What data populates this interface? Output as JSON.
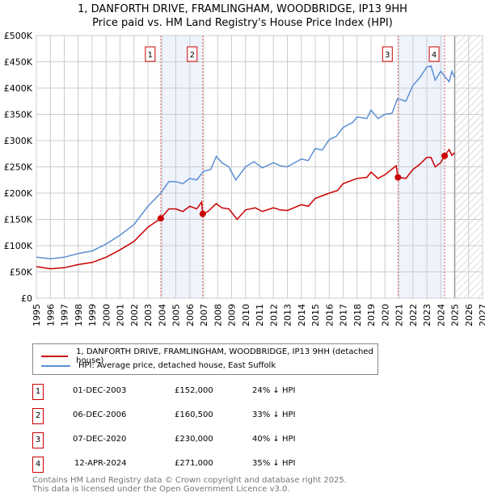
{
  "chart_data": {
    "type": "line",
    "title": "1, DANFORTH DRIVE, FRAMLINGHAM, WOODBRIDGE, IP13 9HH",
    "subtitle": "Price paid vs. HM Land Registry's House Price Index (HPI)",
    "xlim": [
      1995,
      2027
    ],
    "ylim": [
      0,
      500000
    ],
    "yticks": [
      {
        "v": 0,
        "label": "£0"
      },
      {
        "v": 50000,
        "label": "£50K"
      },
      {
        "v": 100000,
        "label": "£100K"
      },
      {
        "v": 150000,
        "label": "£150K"
      },
      {
        "v": 200000,
        "label": "£200K"
      },
      {
        "v": 250000,
        "label": "£250K"
      },
      {
        "v": 300000,
        "label": "£300K"
      },
      {
        "v": 350000,
        "label": "£350K"
      },
      {
        "v": 400000,
        "label": "£400K"
      },
      {
        "v": 450000,
        "label": "£450K"
      },
      {
        "v": 500000,
        "label": "£500K"
      }
    ],
    "xticks": [
      "1995",
      "1996",
      "1997",
      "1998",
      "1999",
      "2000",
      "2001",
      "2002",
      "2003",
      "2004",
      "2005",
      "2006",
      "2007",
      "2008",
      "2009",
      "2010",
      "2011",
      "2012",
      "2013",
      "2014",
      "2015",
      "2016",
      "2017",
      "2018",
      "2019",
      "2020",
      "2021",
      "2022",
      "2023",
      "2024",
      "2025",
      "2026",
      "2027"
    ],
    "grid": true,
    "forecast_start": 2025,
    "shaded_ranges": [
      [
        2003.92,
        2006.93
      ],
      [
        2020.93,
        2024.28
      ]
    ],
    "series": [
      {
        "name": "1, DANFORTH DRIVE, FRAMLINGHAM, WOODBRIDGE, IP13 9HH (detached house)",
        "color": "#cc0000",
        "x": [
          1995,
          1996,
          1997,
          1998,
          1999,
          2000,
          2001,
          2002,
          2003,
          2003.92,
          2004.5,
          2005,
          2005.5,
          2006,
          2006.5,
          2006.85,
          2006.93,
          2007.3,
          2007.9,
          2008.3,
          2008.8,
          2009.4,
          2010,
          2010.7,
          2011.2,
          2012,
          2012.5,
          2013,
          2014,
          2014.5,
          2015,
          2016,
          2016.6,
          2017,
          2018,
          2018.7,
          2019,
          2019.5,
          2020,
          2020.8,
          2020.93,
          2021.5,
          2022,
          2022.5,
          2023,
          2023.3,
          2023.6,
          2024,
          2024.28,
          2024.6,
          2024.8,
          2025
        ],
        "y": [
          60000,
          56000,
          58000,
          64000,
          68000,
          78000,
          92000,
          108000,
          135000,
          152000,
          170000,
          170000,
          165000,
          175000,
          170000,
          183000,
          160500,
          165000,
          180000,
          172000,
          170000,
          150000,
          168000,
          172000,
          165000,
          172000,
          168000,
          167000,
          178000,
          175000,
          190000,
          200000,
          205000,
          218000,
          228000,
          230000,
          240000,
          228000,
          235000,
          252000,
          230000,
          228000,
          245000,
          255000,
          268000,
          268000,
          250000,
          258000,
          271000,
          283000,
          272000,
          277000
        ]
      },
      {
        "name": "HPI: Average price, detached house, East Suffolk",
        "color": "#5b8fd4",
        "x": [
          1995,
          1996,
          1997,
          1998,
          1999,
          2000,
          2001,
          2002,
          2003,
          2003.92,
          2004.5,
          2005,
          2005.5,
          2006,
          2006.5,
          2007,
          2007.5,
          2007.9,
          2008.3,
          2008.8,
          2009.3,
          2010,
          2010.6,
          2011.2,
          2012,
          2012.5,
          2013,
          2014,
          2014.5,
          2015,
          2015.5,
          2016,
          2016.5,
          2017,
          2017.7,
          2018,
          2018.7,
          2019,
          2019.5,
          2020,
          2020.5,
          2020.9,
          2021.5,
          2022,
          2022.5,
          2023,
          2023.3,
          2023.6,
          2024,
          2024.3,
          2024.6,
          2024.8,
          2025
        ],
        "y": [
          78000,
          75000,
          78000,
          85000,
          90000,
          103000,
          120000,
          140000,
          175000,
          200000,
          222000,
          222000,
          218000,
          228000,
          225000,
          242000,
          245000,
          270000,
          258000,
          250000,
          225000,
          250000,
          260000,
          248000,
          258000,
          252000,
          250000,
          265000,
          262000,
          285000,
          282000,
          302000,
          308000,
          325000,
          335000,
          345000,
          342000,
          358000,
          342000,
          350000,
          352000,
          380000,
          375000,
          405000,
          420000,
          440000,
          442000,
          415000,
          432000,
          422000,
          412000,
          432000,
          420000
        ]
      }
    ],
    "sales": [
      {
        "n": "1",
        "x": 2003.92,
        "y": 152000,
        "date": "01-DEC-2003",
        "price": "£152,000",
        "hpi": "24% ↓ HPI"
      },
      {
        "n": "2",
        "x": 2006.93,
        "y": 160500,
        "date": "06-DEC-2006",
        "price": "£160,500",
        "hpi": "33% ↓ HPI"
      },
      {
        "n": "3",
        "x": 2020.93,
        "y": 230000,
        "date": "07-DEC-2020",
        "price": "£230,000",
        "hpi": "40% ↓ HPI"
      },
      {
        "n": "4",
        "x": 2024.28,
        "y": 271000,
        "date": "12-APR-2024",
        "price": "£271,000",
        "hpi": "35% ↓ HPI"
      }
    ]
  },
  "footer": {
    "line1": "Contains HM Land Registry data © Crown copyright and database right 2025.",
    "line2": "This data is licensed under the Open Government Licence v3.0."
  }
}
